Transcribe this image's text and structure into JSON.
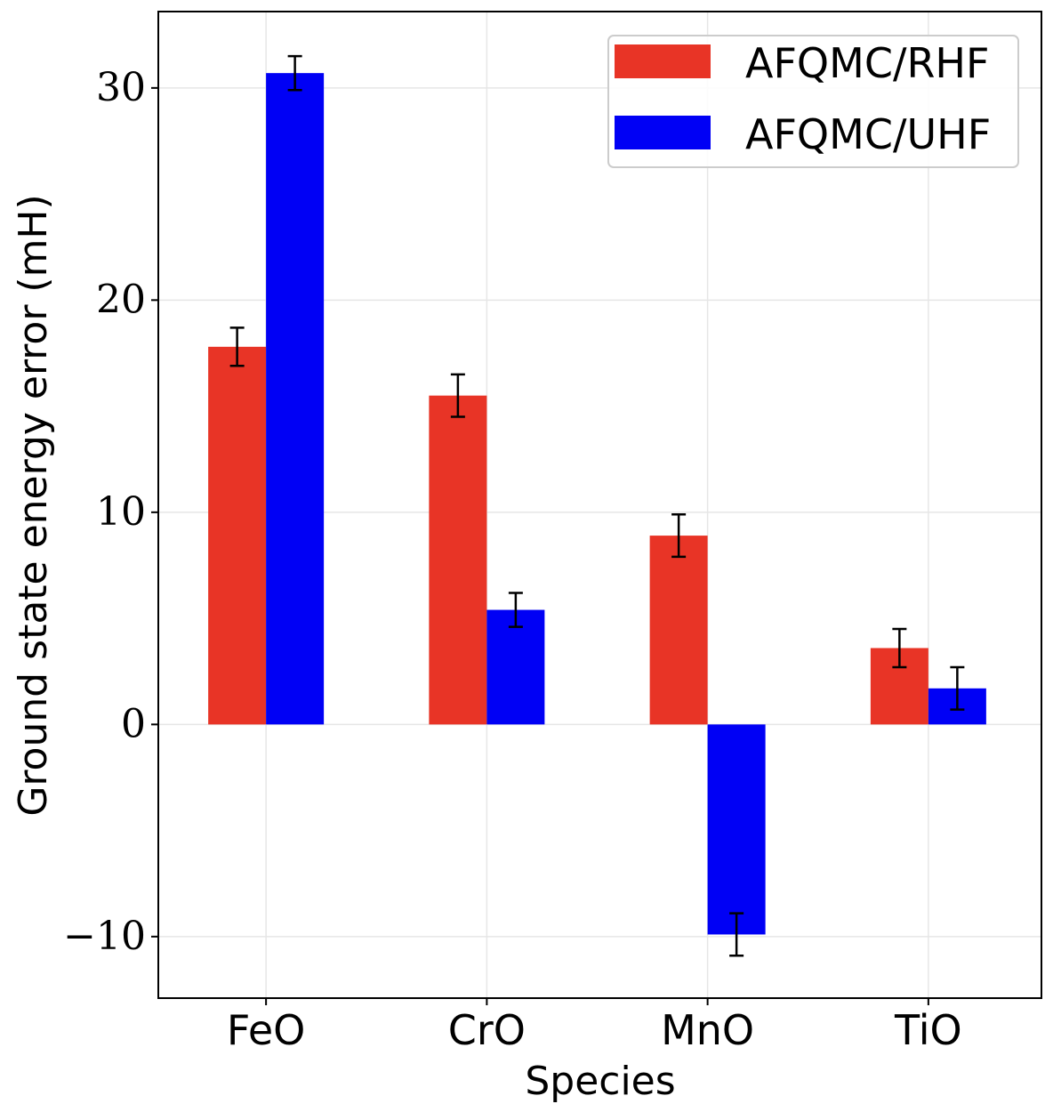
{
  "chart_data": {
    "type": "bar",
    "title": "",
    "xlabel": "Species",
    "ylabel": "Ground state energy error (mH)",
    "categories": [
      "FeO",
      "CrO",
      "MnO",
      "TiO"
    ],
    "series": [
      {
        "name": "AFQMC/RHF",
        "color": "#e83426",
        "values": [
          17.8,
          15.5,
          8.9,
          3.6
        ],
        "errors": [
          0.9,
          1.0,
          1.0,
          0.9
        ]
      },
      {
        "name": "AFQMC/UHF",
        "color": "#0000f5",
        "values": [
          30.7,
          5.4,
          -9.9,
          1.7
        ],
        "errors": [
          0.8,
          0.8,
          1.0,
          1.0
        ]
      }
    ],
    "ylim": [
      -12.9,
      33.6
    ],
    "yticks": [
      -10,
      0,
      10,
      20,
      30
    ],
    "ytick_labels": [
      "−10",
      "0",
      "10",
      "20",
      "30"
    ],
    "grid": true,
    "legend_position": "top-right"
  }
}
